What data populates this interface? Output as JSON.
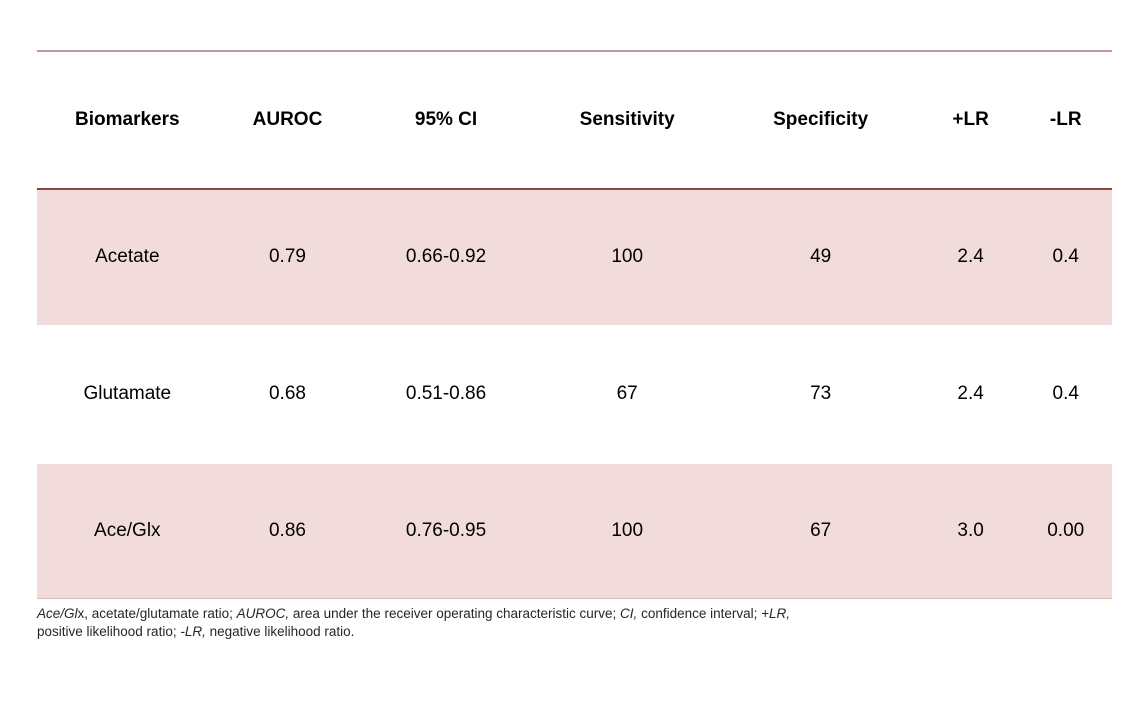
{
  "colors": {
    "row_shading": "#f2dcdb",
    "top_rule": "#c29aa0",
    "header_underline": "#8f4542",
    "text": "#000000"
  },
  "table": {
    "columns": [
      "Biomarkers",
      "AUROC",
      "95% CI",
      "Sensitivity",
      "Specificity",
      "+LR",
      "-LR"
    ],
    "rows": [
      {
        "cells": [
          "Acetate",
          "0.79",
          "0.66-0.92",
          "100",
          "49",
          "2.4",
          "0.4"
        ]
      },
      {
        "cells": [
          "Glutamate",
          "0.68",
          "0.51-0.86",
          "67",
          "73",
          "2.4",
          "0.4"
        ]
      },
      {
        "cells": [
          "Ace/Glx",
          "0.86",
          "0.76-0.95",
          "100",
          "67",
          "3.0",
          "0.00"
        ]
      }
    ]
  },
  "footnote": {
    "segments": [
      "Ace/Gl",
      "x, acetate/glutamate ratio; ",
      "AUROC,",
      " area under the receiver operating characteristic curve; ",
      "CI,",
      " confidence interval; ",
      "+LR,",
      "positive likelihood ratio; ",
      "-LR,",
      " negative likelihood ratio."
    ]
  }
}
